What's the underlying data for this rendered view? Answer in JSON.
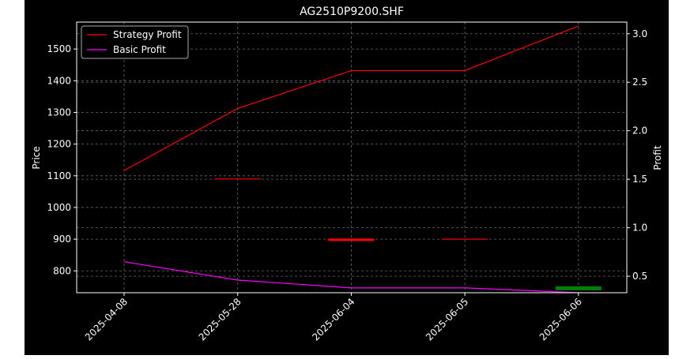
{
  "chart_data": {
    "type": "line",
    "title": "AG2510P9200.SHF",
    "xlabel": "",
    "ylabel": "Price",
    "y2label": "Profit",
    "categories": [
      "2025-04-08",
      "2025-05-28",
      "2025-06-04",
      "2025-06-05",
      "2025-06-06"
    ],
    "ylim": [
      731,
      1585
    ],
    "y2lim": [
      0.33,
      3.12
    ],
    "yticks": [
      "800",
      "900",
      "1000",
      "1100",
      "1200",
      "1300",
      "1400",
      "1500"
    ],
    "y2ticks": [
      "0.5",
      "1.0",
      "1.5",
      "2.0",
      "2.5",
      "3.0"
    ],
    "grid": true,
    "legend_position": "top-left",
    "series": [
      {
        "name": "Strategy Profit",
        "axis": "right",
        "color": "#ff0000",
        "values": [
          1.59,
          2.23,
          2.62,
          2.62,
          3.08
        ]
      },
      {
        "name": "Basic Profit",
        "axis": "right",
        "color": "#ff00ff",
        "values": [
          0.65,
          0.46,
          0.38,
          0.38,
          0.33
        ]
      }
    ],
    "markers": [
      {
        "x_index": 1,
        "price": 1090,
        "color": "#cc0000",
        "weight": "thin"
      },
      {
        "x_index": 2,
        "price": 898,
        "color": "#ff0000",
        "weight": "medium"
      },
      {
        "x_index": 3,
        "price": 900,
        "color": "#cc0000",
        "weight": "thin"
      },
      {
        "x_index": 4,
        "price": 745,
        "color": "#008000",
        "weight": "thick"
      }
    ]
  }
}
